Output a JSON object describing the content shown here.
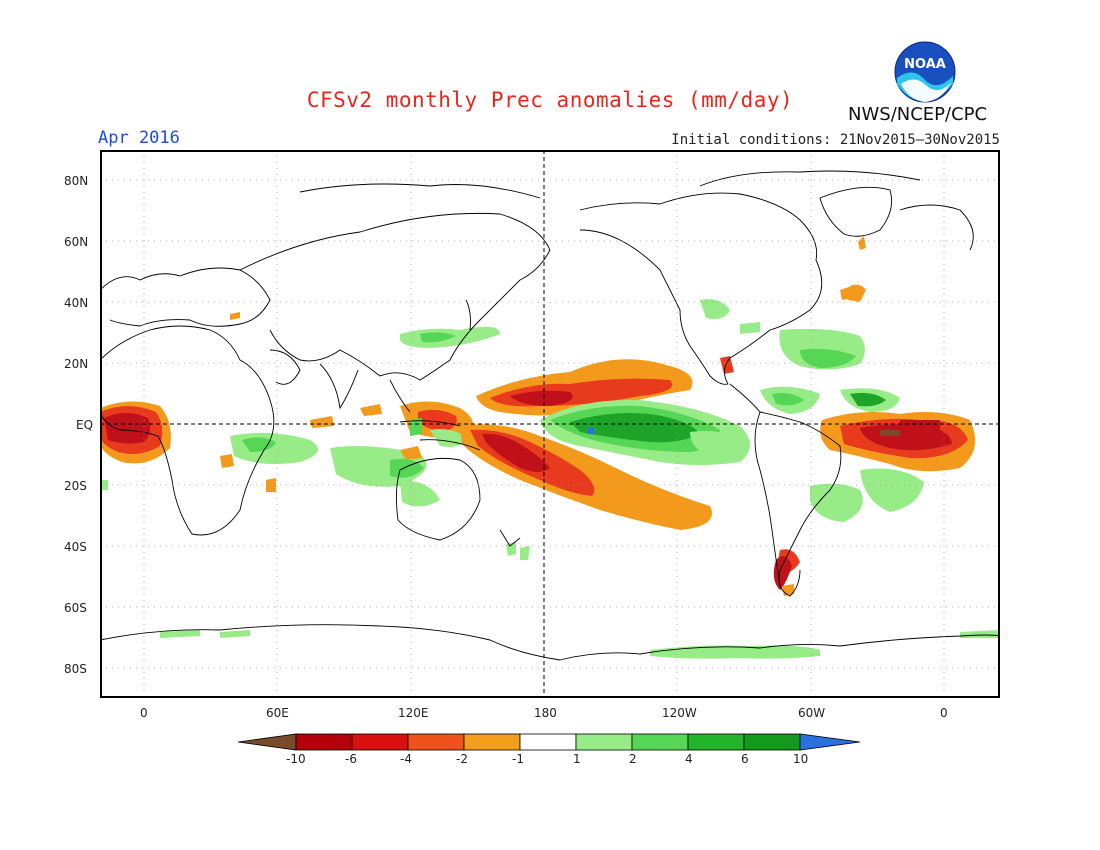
{
  "header": {
    "title": "CFSv2 monthly Prec anomalies (mm/day)",
    "month": "Apr 2016",
    "initial_conditions": "Initial conditions: 21Nov2015–30Nov2015",
    "agency": "NWS/NCEP/CPC",
    "logo_text": "NOAA"
  },
  "axes": {
    "y_ticks": [
      "80N",
      "60N",
      "40N",
      "20N",
      "EQ",
      "20S",
      "40S",
      "60S",
      "80S"
    ],
    "x_ticks": [
      "0",
      "60E",
      "120E",
      "180",
      "120W",
      "60W",
      "0"
    ]
  },
  "colorbar": {
    "labels": [
      "-10",
      "-6",
      "-4",
      "-2",
      "-1",
      "1",
      "2",
      "4",
      "6",
      "10"
    ],
    "colors": [
      "#7a4a2a",
      "#b4000a",
      "#d81010",
      "#f0521c",
      "#f2a01c",
      "#ffffff",
      "#98ec88",
      "#55d655",
      "#22b42a",
      "#119a1c",
      "#2c70e0"
    ]
  },
  "palette": {
    "title": "#e8261c",
    "month": "#1d4cd6",
    "deep_red": "#c0101a",
    "red": "#e83a1c",
    "orange": "#f39a1c",
    "light_green": "#98ec88",
    "green": "#55d655",
    "dark_green": "#1ea428"
  }
}
